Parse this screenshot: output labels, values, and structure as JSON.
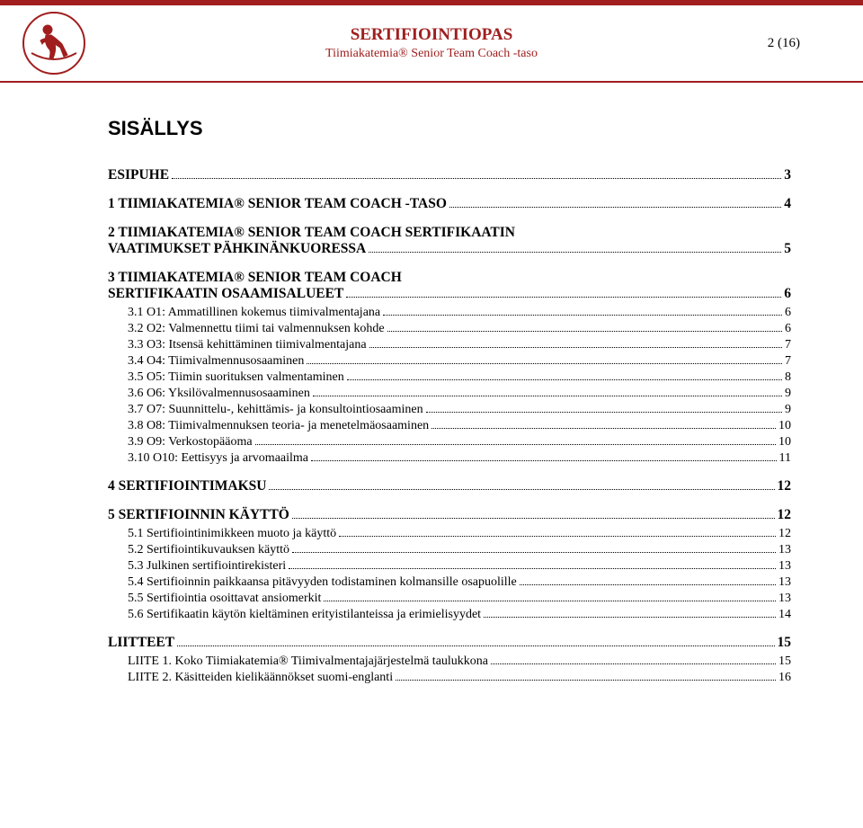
{
  "header": {
    "title": "SERTIFIOINTIOPAS",
    "subtitle": "Tiimiakatemia® Senior Team Coach -taso",
    "page_indicator": "2 (16)"
  },
  "toc_heading": "SISÄLLYS",
  "colors": {
    "brand": "#a01e1e",
    "text": "#000000",
    "background": "#ffffff",
    "dot": "#000000"
  },
  "typography": {
    "body_font": "Times New Roman",
    "heading_font": "Arial",
    "body_size_pt": 11,
    "lvl1_bold": true
  },
  "toc": [
    {
      "level": 1,
      "label": "ESIPUHE",
      "page": "3"
    },
    {
      "level": 1,
      "label": "1 TIIMIAKATEMIA® SENIOR TEAM COACH -TASO",
      "page": "4"
    },
    {
      "level": 1,
      "label": "2 TIIMIAKATEMIA® SENIOR TEAM COACH SERTIFIKAATIN VAATIMUKSET PÄHKINÄNKUORESSA",
      "page": "5"
    },
    {
      "level": 1,
      "label": "3 TIIMIAKATEMIA® SENIOR TEAM COACH SERTIFIKAATIN OSAAMISALUEET",
      "page": "6"
    },
    {
      "level": 2,
      "label": "3.1 O1: Ammatillinen kokemus tiimivalmentajana",
      "page": "6"
    },
    {
      "level": 2,
      "label": "3.2 O2: Valmennettu tiimi tai valmennuksen kohde",
      "page": "6"
    },
    {
      "level": 2,
      "label": "3.3 O3: Itsensä kehittäminen tiimivalmentajana",
      "page": "7"
    },
    {
      "level": 2,
      "label": "3.4 O4: Tiimivalmennusosaaminen",
      "page": "7"
    },
    {
      "level": 2,
      "label": "3.5 O5: Tiimin suorituksen valmentaminen",
      "page": "8"
    },
    {
      "level": 2,
      "label": "3.6 O6: Yksilövalmennusosaaminen",
      "page": "9"
    },
    {
      "level": 2,
      "label": "3.7 O7: Suunnittelu-, kehittämis- ja konsultointiosaaminen",
      "page": "9"
    },
    {
      "level": 2,
      "label": "3.8 O8: Tiimivalmennuksen teoria- ja menetelmäosaaminen",
      "page": "10"
    },
    {
      "level": 2,
      "label": "3.9 O9: Verkostopääoma",
      "page": "10"
    },
    {
      "level": 2,
      "label": "3.10 O10: Eettisyys ja arvomaailma",
      "page": "11"
    },
    {
      "level": 1,
      "label": "4 SERTIFIOINTIMAKSU",
      "page": "12"
    },
    {
      "level": 1,
      "label": "5 SERTIFIOINNIN KÄYTTÖ",
      "page": "12"
    },
    {
      "level": 2,
      "label": "5.1 Sertifiointinimikkeen muoto ja käyttö",
      "page": "12"
    },
    {
      "level": 2,
      "label": "5.2 Sertifiointikuvauksen käyttö",
      "page": "13"
    },
    {
      "level": 2,
      "label": "5.3 Julkinen sertifiointirekisteri",
      "page": "13"
    },
    {
      "level": 2,
      "label": "5.4 Sertifioinnin paikkaansa pitävyyden todistaminen kolmansille osapuolille",
      "page": "13"
    },
    {
      "level": 2,
      "label": "5.5 Sertifiointia osoittavat ansiomerkit",
      "page": "13"
    },
    {
      "level": 2,
      "label": "5.6 Sertifikaatin käytön kieltäminen erityistilanteissa ja erimielisyydet",
      "page": "14"
    },
    {
      "level": 1,
      "label": "LIITTEET",
      "page": "15"
    },
    {
      "level": 2,
      "label": "LIITE 1. Koko Tiimiakatemia® Tiimivalmentajajärjestelmä taulukkona",
      "page": "15"
    },
    {
      "level": 2,
      "label": "LIITE 2. Käsitteiden kielikäännökset suomi-englanti",
      "page": "16"
    }
  ]
}
